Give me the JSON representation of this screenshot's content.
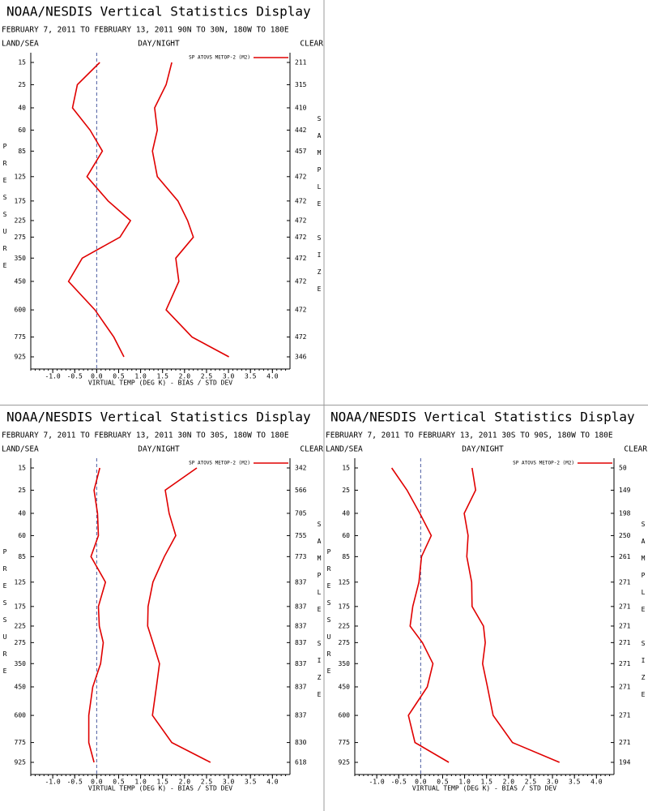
{
  "chart_data": [
    {
      "type": "line",
      "title": "NOAA/NESDIS Vertical Statistics Display",
      "subtitle": "FEBRUARY 7, 2011 TO FEBRUARY 13, 2011 90N TO 30N, 180W TO 180E",
      "left_label": "LAND/SEA",
      "center_label": "DAY/NIGHT",
      "right_label": "CLEAR",
      "y_label": "PRESSURE",
      "y2_label": "SAMPLE SIZE",
      "x_label": "VIRTUAL TEMP (DEG K) - BIAS / STD DEV",
      "categories": [
        15,
        25,
        40,
        60,
        85,
        125,
        175,
        225,
        275,
        350,
        450,
        600,
        775,
        925
      ],
      "sample_sizes": [
        211,
        315,
        410,
        442,
        457,
        472,
        472,
        472,
        472,
        472,
        472,
        472,
        472,
        346
      ],
      "series": [
        {
          "name": "SP ATOVS METOP-2 (M2)",
          "color": "#e00000",
          "bias": [
            0.07,
            -0.44,
            -0.55,
            -0.15,
            0.13,
            -0.22,
            0.26,
            0.77,
            0.53,
            -0.33,
            -0.64,
            -0.04,
            0.39,
            0.62
          ],
          "std_dev": [
            1.71,
            1.58,
            1.32,
            1.38,
            1.27,
            1.38,
            1.85,
            2.07,
            2.2,
            1.8,
            1.87,
            1.58,
            2.17,
            3.01
          ]
        }
      ],
      "xlim": [
        -1.5,
        4.4
      ],
      "xticks": [
        {
          "value": -1,
          "label": "-1.0"
        },
        {
          "value": -0.5,
          "label": "-0.5"
        },
        {
          "value": 0,
          "label": "0.0"
        },
        {
          "value": 0.5,
          "label": "0.5"
        },
        {
          "value": 1,
          "label": "1.0"
        },
        {
          "value": 1.5,
          "label": "1.5"
        },
        {
          "value": 2,
          "label": "2.0"
        },
        {
          "value": 2.5,
          "label": "2.5"
        },
        {
          "value": 3,
          "label": "3.0"
        },
        {
          "value": 3.5,
          "label": "3.5"
        },
        {
          "value": 4,
          "label": "4.0"
        }
      ],
      "zero_line": true
    },
    {
      "type": "line",
      "title": "NOAA/NESDIS Vertical Statistics Display",
      "subtitle": "FEBRUARY 7, 2011 TO FEBRUARY 13, 2011 30N TO 30S, 180W TO 180E",
      "left_label": "LAND/SEA",
      "center_label": "DAY/NIGHT",
      "right_label": "CLEAR",
      "y_label": "PRESSURE",
      "y2_label": "SAMPLE SIZE",
      "x_label": "VIRTUAL TEMP (DEG K) - BIAS / STD DEV",
      "categories": [
        15,
        25,
        40,
        60,
        85,
        125,
        175,
        225,
        275,
        350,
        450,
        600,
        775,
        925
      ],
      "sample_sizes": [
        342,
        566,
        705,
        755,
        773,
        837,
        837,
        837,
        837,
        837,
        837,
        837,
        830,
        618
      ],
      "series": [
        {
          "name": "SP ATOVS METOP-2 (M2)",
          "color": "#e00000",
          "bias": [
            0.07,
            -0.06,
            0.02,
            0.04,
            -0.13,
            0.2,
            0.04,
            0.06,
            0.15,
            0.09,
            -0.09,
            -0.18,
            -0.18,
            -0.06
          ],
          "std_dev": [
            2.28,
            1.56,
            1.65,
            1.8,
            1.54,
            1.28,
            1.17,
            1.16,
            1.28,
            1.43,
            1.36,
            1.27,
            1.71,
            2.59
          ]
        }
      ],
      "xlim": [
        -1.5,
        4.4
      ],
      "xticks": [
        {
          "value": -1,
          "label": "-1.0"
        },
        {
          "value": -0.5,
          "label": "-0.5"
        },
        {
          "value": 0,
          "label": "0.0"
        },
        {
          "value": 0.5,
          "label": "0.5"
        },
        {
          "value": 1,
          "label": "1.0"
        },
        {
          "value": 1.5,
          "label": "1.5"
        },
        {
          "value": 2,
          "label": "2.0"
        },
        {
          "value": 2.5,
          "label": "2.5"
        },
        {
          "value": 3,
          "label": "3.0"
        },
        {
          "value": 3.5,
          "label": "3.5"
        },
        {
          "value": 4,
          "label": "4.0"
        }
      ],
      "zero_line": true
    },
    {
      "type": "line",
      "title": "NOAA/NESDIS Vertical Statistics Display",
      "subtitle": "FEBRUARY 7, 2011 TO FEBRUARY 13, 2011 30S TO 90S, 180W TO 180E",
      "left_label": "LAND/SEA",
      "center_label": "DAY/NIGHT",
      "right_label": "CLEAR",
      "y_label": "PRESSURE",
      "y2_label": "SAMPLE SIZE",
      "x_label": "VIRTUAL TEMP (DEG K) - BIAS / STD DEV",
      "categories": [
        15,
        25,
        40,
        60,
        85,
        125,
        175,
        225,
        275,
        350,
        450,
        600,
        775,
        925
      ],
      "sample_sizes": [
        50,
        149,
        198,
        250,
        261,
        271,
        271,
        271,
        271,
        271,
        271,
        271,
        271,
        194
      ],
      "series": [
        {
          "name": "SP ATOVS METOP-2 (M2)",
          "color": "#e00000",
          "bias": [
            -0.66,
            -0.31,
            -0.02,
            0.24,
            0.02,
            -0.04,
            -0.18,
            -0.24,
            0.04,
            0.28,
            0.15,
            -0.28,
            -0.13,
            0.64
          ],
          "std_dev": [
            1.17,
            1.25,
            0.99,
            1.08,
            1.05,
            1.16,
            1.17,
            1.43,
            1.47,
            1.41,
            1.52,
            1.65,
            2.09,
            3.16
          ]
        }
      ],
      "xlim": [
        -1.5,
        4.4
      ],
      "xticks": [
        {
          "value": -1,
          "label": "-1.0"
        },
        {
          "value": -0.5,
          "label": "-0.5"
        },
        {
          "value": 0,
          "label": "0.0"
        },
        {
          "value": 0.5,
          "label": "0.5"
        },
        {
          "value": 1,
          "label": "1.0"
        },
        {
          "value": 1.5,
          "label": "1.5"
        },
        {
          "value": 2,
          "label": "2.0"
        },
        {
          "value": 2.5,
          "label": "2.5"
        },
        {
          "value": 3,
          "label": "3.0"
        },
        {
          "value": 3.5,
          "label": "3.5"
        },
        {
          "value": 4,
          "label": "4.0"
        }
      ],
      "zero_line": true
    }
  ]
}
